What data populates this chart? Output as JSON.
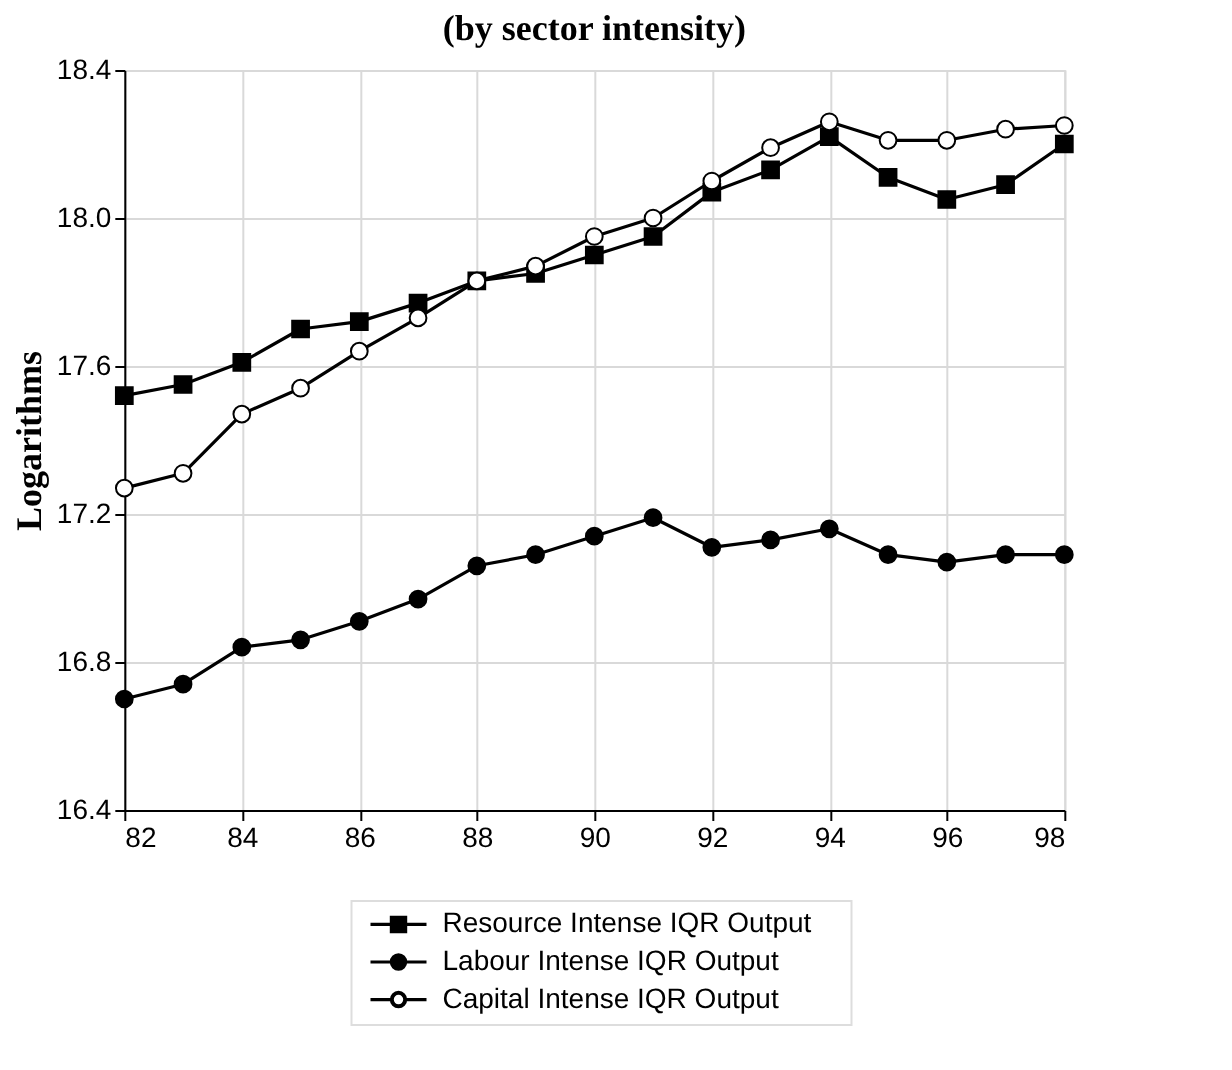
{
  "chart_data": {
    "type": "line",
    "title": "(by sector intensity)",
    "ylabel": "Logarithms",
    "x": [
      82,
      83,
      84,
      85,
      86,
      87,
      88,
      89,
      90,
      91,
      92,
      93,
      94,
      95,
      96,
      97,
      98
    ],
    "series": [
      {
        "name": "Resource Intense IQR Output",
        "color": "#000000",
        "marker": "square",
        "values": [
          17.52,
          17.55,
          17.61,
          17.7,
          17.72,
          17.77,
          17.83,
          17.85,
          17.9,
          17.95,
          18.07,
          18.13,
          18.22,
          18.11,
          18.05,
          18.09,
          18.2
        ]
      },
      {
        "name": "Labour Intense IQR Output",
        "color": "#000000",
        "marker": "circle",
        "values": [
          16.7,
          16.74,
          16.84,
          16.86,
          16.91,
          16.97,
          17.06,
          17.09,
          17.14,
          17.19,
          17.11,
          17.13,
          17.16,
          17.09,
          17.07,
          17.09,
          17.09
        ]
      },
      {
        "name": "Capital Intense IQR Output",
        "color": "#000000",
        "marker": "circle-open",
        "values": [
          17.27,
          17.31,
          17.47,
          17.54,
          17.64,
          17.73,
          17.83,
          17.87,
          17.95,
          18.0,
          18.1,
          18.19,
          18.26,
          18.21,
          18.21,
          18.24,
          18.25
        ]
      }
    ],
    "xlim": [
      82,
      98
    ],
    "xticks": [
      82,
      84,
      86,
      88,
      90,
      92,
      94,
      96,
      98
    ],
    "ylim": [
      16.4,
      18.4
    ],
    "yticks": [
      {
        "value": 16.4,
        "label": "16.4"
      },
      {
        "value": 16.8,
        "label": "16.8"
      },
      {
        "value": 17.2,
        "label": "17.2"
      },
      {
        "value": 17.6,
        "label": "17.6"
      },
      {
        "value": 18.0,
        "label": "18.0"
      },
      {
        "value": 18.4,
        "label": "18.4"
      }
    ],
    "grid": true,
    "legend": "bottom",
    "line_style": "solid"
  }
}
